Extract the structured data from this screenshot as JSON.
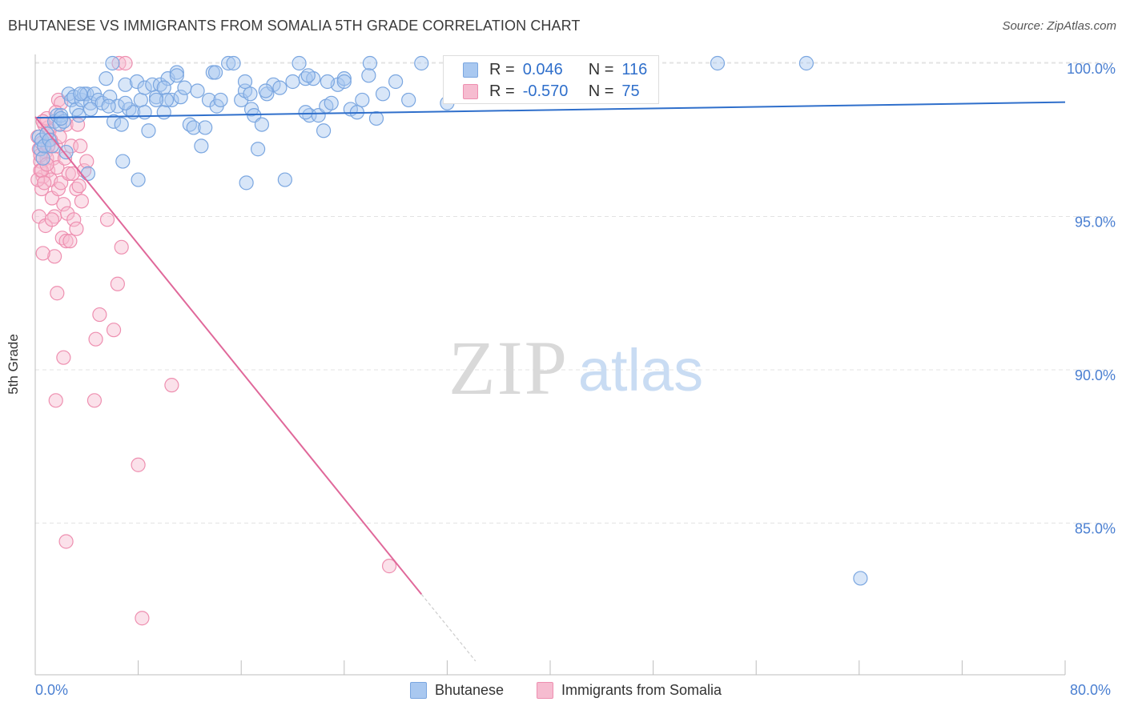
{
  "title": "BHUTANESE VS IMMIGRANTS FROM SOMALIA 5TH GRADE CORRELATION CHART",
  "source": "Source: ZipAtlas.com",
  "watermark": {
    "zip": "ZIP",
    "atlas": "atlas"
  },
  "legend": {
    "bhutanese": {
      "r_label": "R =",
      "r_value": "0.046",
      "n_label": "N =",
      "n_value": "116"
    },
    "somalia": {
      "r_label": "R =",
      "r_value": "-0.570",
      "n_label": "N =",
      "n_value": "75"
    }
  },
  "colors": {
    "blue_fill": "#a9c8f0",
    "blue_stroke": "#7aa6e0",
    "blue_line": "#2f6fcb",
    "pink_fill": "#f6bcd0",
    "pink_stroke": "#ee8fb0",
    "pink_line": "#e0689a",
    "tick_label": "#4a7fd1",
    "grid": "#e3e3e3"
  },
  "chart_data": {
    "type": "scatter",
    "title": "BHUTANESE VS IMMIGRANTS FROM SOMALIA 5TH GRADE CORRELATION CHART",
    "xlabel": "",
    "ylabel": "5th Grade",
    "xlim": [
      0,
      80
    ],
    "ylim": [
      80.5,
      100.8
    ],
    "x_tick_labels": [
      "0.0%",
      "80.0%"
    ],
    "y_ticks": [
      85,
      90,
      95,
      100
    ],
    "y_tick_labels": [
      "85.0%",
      "90.0%",
      "95.0%",
      "100.0%"
    ],
    "grid": true,
    "series": [
      {
        "name": "Bhutanese",
        "color": "#7aa6e0",
        "trend": {
          "x": [
            0,
            80
          ],
          "y": [
            98.22,
            98.73
          ],
          "solid_until": 80
        },
        "points": [
          [
            0.3,
            97.6
          ],
          [
            0.4,
            97.2
          ],
          [
            0.5,
            97.5
          ],
          [
            0.6,
            96.9
          ],
          [
            0.7,
            97.3
          ],
          [
            0.9,
            97.7
          ],
          [
            1.1,
            97.5
          ],
          [
            1.3,
            97.3
          ],
          [
            1.5,
            98.1
          ],
          [
            1.7,
            98.3
          ],
          [
            1.9,
            98.0
          ],
          [
            2.0,
            98.3
          ],
          [
            2.2,
            98.1
          ],
          [
            2.4,
            97.1
          ],
          [
            2.6,
            99.0
          ],
          [
            2.8,
            98.8
          ],
          [
            3.0,
            98.9
          ],
          [
            3.2,
            98.5
          ],
          [
            3.4,
            98.3
          ],
          [
            3.6,
            98.8
          ],
          [
            3.8,
            99.0
          ],
          [
            4.0,
            99.0
          ],
          [
            4.3,
            98.7
          ],
          [
            4.6,
            99.0
          ],
          [
            4.9,
            98.8
          ],
          [
            5.2,
            98.7
          ],
          [
            5.5,
            99.5
          ],
          [
            5.8,
            98.9
          ],
          [
            6.1,
            98.1
          ],
          [
            6.4,
            98.6
          ],
          [
            6.7,
            98.0
          ],
          [
            7.0,
            99.3
          ],
          [
            7.3,
            98.5
          ],
          [
            7.6,
            98.4
          ],
          [
            7.9,
            99.4
          ],
          [
            8.2,
            98.8
          ],
          [
            8.5,
            99.2
          ],
          [
            8.8,
            97.8
          ],
          [
            9.1,
            99.3
          ],
          [
            9.4,
            98.9
          ],
          [
            9.7,
            99.3
          ],
          [
            10.0,
            98.4
          ],
          [
            10.3,
            99.5
          ],
          [
            10.6,
            98.8
          ],
          [
            11.0,
            99.7
          ],
          [
            11.3,
            98.9
          ],
          [
            11.6,
            99.2
          ],
          [
            12.0,
            98.0
          ],
          [
            12.3,
            97.9
          ],
          [
            12.6,
            99.1
          ],
          [
            12.9,
            97.3
          ],
          [
            13.2,
            97.9
          ],
          [
            13.5,
            98.8
          ],
          [
            13.8,
            99.7
          ],
          [
            14.1,
            98.6
          ],
          [
            14.4,
            98.8
          ],
          [
            15.0,
            100.0
          ],
          [
            15.4,
            100.0
          ],
          [
            16.0,
            98.8
          ],
          [
            16.3,
            99.1
          ],
          [
            16.7,
            99.0
          ],
          [
            16.8,
            98.5
          ],
          [
            17.0,
            98.3
          ],
          [
            17.3,
            97.2
          ],
          [
            17.6,
            98.0
          ],
          [
            18.0,
            99.0
          ],
          [
            18.5,
            99.3
          ],
          [
            19.0,
            99.2
          ],
          [
            19.4,
            96.2
          ],
          [
            20.0,
            99.4
          ],
          [
            20.5,
            100.0
          ],
          [
            21.0,
            99.5
          ],
          [
            21.3,
            98.3
          ],
          [
            21.6,
            99.5
          ],
          [
            22.0,
            98.3
          ],
          [
            22.4,
            97.8
          ],
          [
            22.6,
            98.6
          ],
          [
            23.0,
            98.7
          ],
          [
            23.5,
            99.3
          ],
          [
            24.0,
            99.5
          ],
          [
            24.5,
            98.5
          ],
          [
            25.0,
            98.4
          ],
          [
            25.4,
            98.8
          ],
          [
            26.0,
            100.0
          ],
          [
            26.5,
            98.2
          ],
          [
            27.0,
            99.0
          ],
          [
            28.0,
            99.4
          ],
          [
            29.0,
            98.8
          ],
          [
            30.0,
            100.0
          ],
          [
            32.0,
            98.7
          ],
          [
            53.0,
            100.0
          ],
          [
            59.9,
            100.0
          ],
          [
            64.1,
            83.2
          ],
          [
            10.0,
            99.2
          ],
          [
            14.0,
            99.7
          ],
          [
            10.2,
            98.8
          ],
          [
            4.3,
            98.5
          ],
          [
            3.5,
            99.0
          ],
          [
            9.4,
            98.8
          ],
          [
            8.5,
            98.4
          ],
          [
            7.0,
            98.7
          ],
          [
            16.3,
            99.4
          ],
          [
            21.0,
            98.4
          ],
          [
            2.0,
            98.2
          ],
          [
            4.1,
            96.4
          ],
          [
            6.8,
            96.8
          ],
          [
            8.0,
            96.2
          ],
          [
            16.4,
            96.1
          ],
          [
            11.0,
            99.6
          ],
          [
            17.9,
            99.1
          ],
          [
            24.0,
            99.4
          ],
          [
            25.9,
            99.6
          ],
          [
            6.0,
            100.0
          ],
          [
            21.2,
            99.6
          ],
          [
            22.7,
            99.4
          ],
          [
            5.7,
            98.6
          ]
        ]
      },
      {
        "name": "Immigrants from Somalia",
        "color": "#ee8fb0",
        "trend": {
          "x": [
            0,
            34.2
          ],
          "y": [
            98.25,
            80.5
          ],
          "solid_until": 30
        },
        "points": [
          [
            0.2,
            97.6
          ],
          [
            0.3,
            97.2
          ],
          [
            0.4,
            96.8
          ],
          [
            0.5,
            97.4
          ],
          [
            0.6,
            96.3
          ],
          [
            0.7,
            98.0
          ],
          [
            0.8,
            97.1
          ],
          [
            0.9,
            96.9
          ],
          [
            1.0,
            96.5
          ],
          [
            1.1,
            97.8
          ],
          [
            1.2,
            96.2
          ],
          [
            1.3,
            95.6
          ],
          [
            1.4,
            96.9
          ],
          [
            1.5,
            95.0
          ],
          [
            1.6,
            97.3
          ],
          [
            1.7,
            96.6
          ],
          [
            1.8,
            95.9
          ],
          [
            1.9,
            97.6
          ],
          [
            2.0,
            96.1
          ],
          [
            2.1,
            94.3
          ],
          [
            2.2,
            95.4
          ],
          [
            2.3,
            96.9
          ],
          [
            2.4,
            94.2
          ],
          [
            2.5,
            95.1
          ],
          [
            2.6,
            96.4
          ],
          [
            2.7,
            94.2
          ],
          [
            2.8,
            97.3
          ],
          [
            2.9,
            96.4
          ],
          [
            3.0,
            94.9
          ],
          [
            3.2,
            95.9
          ],
          [
            3.4,
            96.0
          ],
          [
            3.6,
            95.5
          ],
          [
            3.8,
            96.5
          ],
          [
            4.0,
            96.8
          ],
          [
            0.3,
            95.0
          ],
          [
            0.8,
            94.7
          ],
          [
            1.3,
            94.9
          ],
          [
            1.5,
            93.7
          ],
          [
            1.7,
            92.5
          ],
          [
            2.2,
            90.4
          ],
          [
            2.4,
            84.4
          ],
          [
            0.6,
            93.8
          ],
          [
            0.5,
            95.9
          ],
          [
            0.4,
            96.5
          ],
          [
            1.0,
            97.9
          ],
          [
            1.2,
            97.5
          ],
          [
            1.8,
            98.8
          ],
          [
            2.0,
            98.7
          ],
          [
            2.4,
            98.0
          ],
          [
            0.9,
            98.2
          ],
          [
            1.6,
            98.4
          ],
          [
            3.3,
            98.0
          ],
          [
            3.5,
            97.3
          ],
          [
            3.2,
            94.6
          ],
          [
            6.5,
            100.0
          ],
          [
            4.6,
            89.0
          ],
          [
            4.7,
            91.0
          ],
          [
            5.0,
            91.8
          ],
          [
            5.6,
            94.9
          ],
          [
            6.1,
            91.3
          ],
          [
            6.4,
            92.8
          ],
          [
            6.7,
            94.0
          ],
          [
            8.0,
            86.9
          ],
          [
            8.3,
            81.9
          ],
          [
            10.6,
            89.5
          ],
          [
            1.6,
            89.0
          ],
          [
            0.6,
            98.1
          ],
          [
            0.2,
            96.2
          ],
          [
            7.0,
            100.0
          ],
          [
            27.5,
            83.6
          ],
          [
            0.5,
            96.5
          ],
          [
            0.7,
            96.1
          ],
          [
            0.4,
            97.0
          ],
          [
            0.9,
            96.7
          ],
          [
            1.0,
            97.3
          ]
        ]
      }
    ]
  }
}
